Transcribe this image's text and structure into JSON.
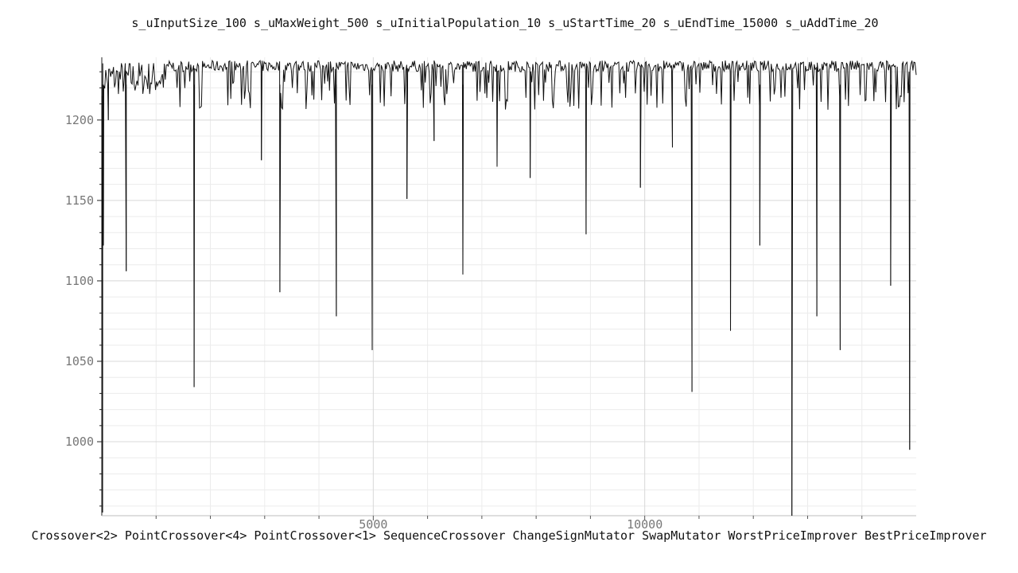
{
  "chart_data": {
    "type": "line",
    "title": "s_uInputSize_100 s_uMaxWeight_500 s_uInitialPopulation_10 s_uStartTime_20 s_uEndTime_15000 s_uAddTime_20",
    "xlabel": "Crossover<2> PointCrossover<4> PointCrossover<1> SequenceCrossover ChangeSignMutator SwapMutator WorstPriceImprover BestPriceImprover",
    "ylabel": "",
    "xlim": [
      0,
      15000
    ],
    "ylim": [
      954,
      1239
    ],
    "x_ticks": [
      5000,
      10000
    ],
    "y_ticks": [
      1000,
      1050,
      1100,
      1150,
      1200
    ],
    "grid": true,
    "baseline": 1232,
    "dips": [
      {
        "x": 15,
        "y": 956
      },
      {
        "x": 30,
        "y": 1122
      },
      {
        "x": 120,
        "y": 1200
      },
      {
        "x": 450,
        "y": 1106
      },
      {
        "x": 1700,
        "y": 1034
      },
      {
        "x": 2940,
        "y": 1175
      },
      {
        "x": 3280,
        "y": 1093
      },
      {
        "x": 4320,
        "y": 1078
      },
      {
        "x": 4980,
        "y": 1057
      },
      {
        "x": 5620,
        "y": 1151
      },
      {
        "x": 6120,
        "y": 1187
      },
      {
        "x": 6650,
        "y": 1104
      },
      {
        "x": 7280,
        "y": 1171
      },
      {
        "x": 7890,
        "y": 1164
      },
      {
        "x": 8920,
        "y": 1129
      },
      {
        "x": 9920,
        "y": 1158
      },
      {
        "x": 10510,
        "y": 1183
      },
      {
        "x": 10870,
        "y": 1031
      },
      {
        "x": 11580,
        "y": 1069
      },
      {
        "x": 12120,
        "y": 1122
      },
      {
        "x": 12710,
        "y": 954
      },
      {
        "x": 13170,
        "y": 1078
      },
      {
        "x": 13600,
        "y": 1057
      },
      {
        "x": 14530,
        "y": 1097
      },
      {
        "x": 14880,
        "y": 995
      }
    ]
  }
}
